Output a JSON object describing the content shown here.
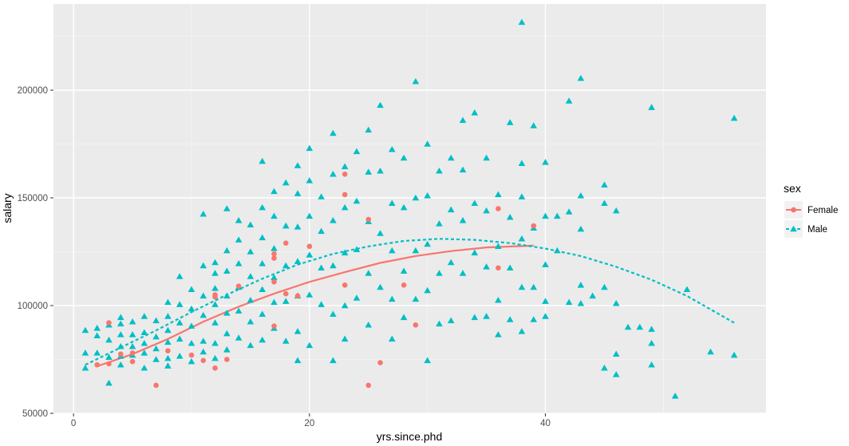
{
  "chart_data": {
    "type": "scatter",
    "xlabel": "yrs.since.phd",
    "ylabel": "salary",
    "xlim": [
      -1.7,
      58.7
    ],
    "ylim": [
      50000,
      240000
    ],
    "x_ticks": [
      0,
      20,
      40
    ],
    "y_ticks": [
      50000,
      100000,
      150000,
      200000
    ],
    "x_tick_labels": [
      "0",
      "20",
      "40"
    ],
    "y_tick_labels": [
      "50000",
      "100000",
      "150000",
      "200000"
    ],
    "grid": true,
    "legend": {
      "title": "sex",
      "position": "right",
      "entries": [
        "Female",
        "Male"
      ]
    },
    "series": [
      {
        "name": "Female",
        "color": "#F8766D",
        "marker": "circle",
        "line_style": "solid",
        "points": [
          [
            2,
            72500
          ],
          [
            3,
            92000
          ],
          [
            3,
            73000
          ],
          [
            4,
            77500
          ],
          [
            5,
            78000
          ],
          [
            5,
            74000
          ],
          [
            7,
            63000
          ],
          [
            8,
            79000
          ],
          [
            10,
            77000
          ],
          [
            11,
            74500
          ],
          [
            12,
            105000
          ],
          [
            12,
            104000
          ],
          [
            12,
            71000
          ],
          [
            13,
            75000
          ],
          [
            14,
            109000
          ],
          [
            17,
            124000
          ],
          [
            17,
            122000
          ],
          [
            17,
            111000
          ],
          [
            17,
            90500
          ],
          [
            18,
            129000
          ],
          [
            18,
            105500
          ],
          [
            19,
            104500
          ],
          [
            20,
            127500
          ],
          [
            23,
            161000
          ],
          [
            23,
            151500
          ],
          [
            23,
            109500
          ],
          [
            25,
            140000
          ],
          [
            25,
            63000
          ],
          [
            26,
            73500
          ],
          [
            28,
            109500
          ],
          [
            29,
            91000
          ],
          [
            36,
            145000
          ],
          [
            36,
            117500
          ],
          [
            39,
            137000
          ]
        ],
        "smooth": [
          [
            2,
            71800
          ],
          [
            5,
            77500
          ],
          [
            8,
            84500
          ],
          [
            11,
            92500
          ],
          [
            14,
            99500
          ],
          [
            17,
            105500
          ],
          [
            20,
            111000
          ],
          [
            23,
            115500
          ],
          [
            26,
            119800
          ],
          [
            29,
            123000
          ],
          [
            32,
            125300
          ],
          [
            35,
            127000
          ],
          [
            39,
            127800
          ]
        ]
      },
      {
        "name": "Male",
        "color": "#00BFC4",
        "marker": "triangle",
        "line_style": "dashed",
        "points": [
          [
            1,
            88500
          ],
          [
            1,
            71000
          ],
          [
            1,
            78000
          ],
          [
            2,
            89500
          ],
          [
            2,
            86000
          ],
          [
            2,
            78000
          ],
          [
            3,
            91000
          ],
          [
            3,
            84000
          ],
          [
            3,
            76000
          ],
          [
            3,
            64000
          ],
          [
            4,
            94500
          ],
          [
            4,
            91500
          ],
          [
            4,
            86500
          ],
          [
            4,
            81000
          ],
          [
            4,
            76500
          ],
          [
            4,
            72500
          ],
          [
            5,
            92500
          ],
          [
            5,
            86500
          ],
          [
            5,
            81000
          ],
          [
            5,
            77000
          ],
          [
            6,
            95000
          ],
          [
            6,
            87500
          ],
          [
            6,
            82500
          ],
          [
            6,
            78000
          ],
          [
            6,
            71000
          ],
          [
            7,
            93000
          ],
          [
            7,
            85500
          ],
          [
            7,
            80000
          ],
          [
            7,
            75000
          ],
          [
            8,
            101500
          ],
          [
            8,
            95000
          ],
          [
            8,
            88500
          ],
          [
            8,
            83000
          ],
          [
            8,
            75500
          ],
          [
            8,
            72000
          ],
          [
            9,
            113500
          ],
          [
            9,
            100500
          ],
          [
            9,
            92000
          ],
          [
            9,
            84500
          ],
          [
            9,
            76500
          ],
          [
            10,
            107500
          ],
          [
            10,
            98500
          ],
          [
            10,
            90500
          ],
          [
            10,
            82500
          ],
          [
            10,
            74000
          ],
          [
            11,
            142500
          ],
          [
            11,
            118500
          ],
          [
            11,
            104500
          ],
          [
            11,
            95500
          ],
          [
            11,
            83500
          ],
          [
            11,
            78500
          ],
          [
            12,
            120000
          ],
          [
            12,
            115000
          ],
          [
            12,
            108000
          ],
          [
            12,
            100500
          ],
          [
            12,
            92000
          ],
          [
            12,
            82500
          ],
          [
            12,
            75500
          ],
          [
            13,
            145000
          ],
          [
            13,
            125500
          ],
          [
            13,
            116000
          ],
          [
            13,
            104500
          ],
          [
            13,
            96500
          ],
          [
            13,
            87000
          ],
          [
            13,
            79500
          ],
          [
            14,
            139500
          ],
          [
            14,
            130500
          ],
          [
            14,
            119500
          ],
          [
            14,
            108500
          ],
          [
            14,
            97500
          ],
          [
            14,
            85000
          ],
          [
            15,
            137500
          ],
          [
            15,
            125000
          ],
          [
            15,
            113500
          ],
          [
            15,
            102500
          ],
          [
            15,
            92500
          ],
          [
            15,
            81500
          ],
          [
            16,
            167000
          ],
          [
            16,
            145500
          ],
          [
            16,
            131500
          ],
          [
            16,
            119500
          ],
          [
            16,
            107500
          ],
          [
            16,
            96000
          ],
          [
            16,
            84000
          ],
          [
            17,
            153000
          ],
          [
            17,
            141500
          ],
          [
            17,
            126500
          ],
          [
            17,
            113000
          ],
          [
            17,
            101500
          ],
          [
            17,
            89500
          ],
          [
            18,
            157000
          ],
          [
            18,
            137000
          ],
          [
            18,
            118500
          ],
          [
            18,
            102000
          ],
          [
            18,
            83500
          ],
          [
            19,
            165000
          ],
          [
            19,
            152000
          ],
          [
            19,
            136500
          ],
          [
            19,
            120500
          ],
          [
            19,
            104500
          ],
          [
            19,
            88000
          ],
          [
            19,
            74500
          ],
          [
            20,
            173000
          ],
          [
            20,
            158000
          ],
          [
            20,
            141500
          ],
          [
            20,
            123500
          ],
          [
            20,
            105000
          ],
          [
            20,
            81500
          ],
          [
            21,
            150500
          ],
          [
            21,
            134500
          ],
          [
            21,
            117500
          ],
          [
            21,
            100500
          ],
          [
            22,
            180000
          ],
          [
            22,
            161000
          ],
          [
            22,
            139500
          ],
          [
            22,
            118500
          ],
          [
            22,
            96000
          ],
          [
            22,
            74500
          ],
          [
            23,
            164500
          ],
          [
            23,
            145500
          ],
          [
            23,
            124500
          ],
          [
            23,
            100000
          ],
          [
            23,
            84500
          ],
          [
            24,
            171500
          ],
          [
            24,
            148500
          ],
          [
            24,
            126000
          ],
          [
            24,
            103500
          ],
          [
            25,
            181500
          ],
          [
            25,
            162000
          ],
          [
            25,
            139000
          ],
          [
            25,
            115000
          ],
          [
            25,
            91000
          ],
          [
            26,
            193000
          ],
          [
            26,
            162500
          ],
          [
            26,
            133500
          ],
          [
            26,
            108500
          ],
          [
            27,
            172500
          ],
          [
            27,
            147500
          ],
          [
            27,
            125500
          ],
          [
            27,
            103000
          ],
          [
            27,
            84500
          ],
          [
            28,
            168500
          ],
          [
            28,
            145500
          ],
          [
            28,
            116000
          ],
          [
            28,
            94500
          ],
          [
            29,
            204000
          ],
          [
            29,
            150000
          ],
          [
            29,
            125500
          ],
          [
            29,
            103000
          ],
          [
            30,
            175000
          ],
          [
            30,
            151000
          ],
          [
            30,
            128500
          ],
          [
            30,
            107000
          ],
          [
            30,
            74500
          ],
          [
            31,
            162500
          ],
          [
            31,
            138000
          ],
          [
            31,
            115000
          ],
          [
            31,
            91500
          ],
          [
            32,
            168500
          ],
          [
            32,
            144500
          ],
          [
            32,
            120000
          ],
          [
            32,
            93000
          ],
          [
            33,
            186000
          ],
          [
            33,
            163000
          ],
          [
            33,
            139500
          ],
          [
            33,
            115000
          ],
          [
            34,
            189500
          ],
          [
            34,
            147500
          ],
          [
            34,
            124500
          ],
          [
            34,
            94500
          ],
          [
            35,
            168500
          ],
          [
            35,
            144000
          ],
          [
            35,
            118000
          ],
          [
            35,
            95000
          ],
          [
            36,
            151500
          ],
          [
            36,
            127500
          ],
          [
            36,
            102500
          ],
          [
            36,
            86500
          ],
          [
            37,
            185000
          ],
          [
            37,
            141000
          ],
          [
            37,
            117500
          ],
          [
            37,
            93500
          ],
          [
            38,
            231500
          ],
          [
            38,
            166000
          ],
          [
            38,
            150500
          ],
          [
            38,
            131000
          ],
          [
            38,
            108500
          ],
          [
            38,
            88000
          ],
          [
            39,
            183500
          ],
          [
            39,
            136000
          ],
          [
            39,
            108500
          ],
          [
            39,
            93500
          ],
          [
            40,
            166500
          ],
          [
            40,
            141500
          ],
          [
            40,
            119000
          ],
          [
            40,
            102000
          ],
          [
            40,
            95000
          ],
          [
            41,
            141500
          ],
          [
            41,
            125500
          ],
          [
            42,
            195000
          ],
          [
            42,
            143500
          ],
          [
            42,
            101500
          ],
          [
            43,
            205500
          ],
          [
            43,
            151000
          ],
          [
            43,
            135500
          ],
          [
            43,
            109500
          ],
          [
            43,
            101000
          ],
          [
            44,
            104500
          ],
          [
            45,
            156000
          ],
          [
            45,
            147500
          ],
          [
            45,
            108500
          ],
          [
            45,
            71000
          ],
          [
            46,
            144000
          ],
          [
            46,
            101000
          ],
          [
            46,
            77500
          ],
          [
            46,
            68000
          ],
          [
            47,
            90000
          ],
          [
            48,
            90000
          ],
          [
            49,
            192000
          ],
          [
            49,
            89000
          ],
          [
            49,
            82500
          ],
          [
            49,
            72500
          ],
          [
            51,
            58000
          ],
          [
            52,
            107500
          ],
          [
            54,
            78500
          ],
          [
            56,
            187000
          ],
          [
            56,
            77000
          ]
        ],
        "smooth": [
          [
            1,
            72500
          ],
          [
            4,
            80500
          ],
          [
            7,
            88500
          ],
          [
            10,
            97000
          ],
          [
            13,
            105000
          ],
          [
            16,
            112500
          ],
          [
            19,
            119000
          ],
          [
            22,
            124000
          ],
          [
            25,
            127500
          ],
          [
            28,
            130000
          ],
          [
            31,
            131000
          ],
          [
            34,
            130500
          ],
          [
            37,
            129000
          ],
          [
            40,
            126500
          ],
          [
            43,
            123000
          ],
          [
            46,
            118000
          ],
          [
            49,
            112000
          ],
          [
            52,
            104500
          ],
          [
            56,
            92000
          ]
        ]
      }
    ]
  }
}
